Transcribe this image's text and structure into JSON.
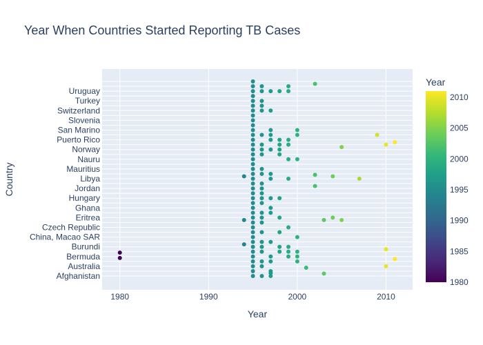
{
  "chart_data": {
    "type": "scatter",
    "title": "Year When Countries Started Reporting TB Cases",
    "xlabel": "Year",
    "ylabel": "Country",
    "xlim": [
      1978,
      2013
    ],
    "xticks": [
      1980,
      1990,
      2000,
      2010
    ],
    "ytick_labels": [
      "Afghanistan",
      "Australia",
      "Bermuda",
      "Burundi",
      "China, Macao SAR",
      "Czech Republic",
      "Eritrea",
      "Ghana",
      "Hungary",
      "Jordan",
      "Libya",
      "Mauritius",
      "Nauru",
      "Norway",
      "Puerto Rico",
      "San Marino",
      "Slovenia",
      "Switzerland",
      "Turkey",
      "Uruguay"
    ],
    "colorbar": {
      "title": "Year",
      "range": [
        1980,
        2011
      ],
      "ticks": [
        1980,
        1985,
        1990,
        1995,
        2000,
        2005,
        2010
      ],
      "colorscale": [
        "#440154",
        "#482878",
        "#3e4989",
        "#31688e",
        "#26828e",
        "#1f9e89",
        "#35b779",
        "#6ece58",
        "#b5de2b",
        "#fde725"
      ]
    },
    "points": [
      {
        "x": 1995,
        "rows": [
          0,
          1,
          2,
          3,
          4,
          5,
          6,
          7,
          8,
          9,
          10,
          11,
          12,
          13,
          14,
          15,
          16,
          17,
          18,
          19,
          20,
          21,
          22,
          23,
          24,
          25,
          26,
          27,
          28,
          29,
          30,
          31,
          32,
          33,
          34,
          35,
          36,
          37,
          38,
          39,
          40
        ]
      },
      {
        "x": 1996,
        "rows": [
          0,
          2,
          3,
          5,
          6,
          7,
          9,
          11,
          12,
          13,
          15,
          16,
          17,
          18,
          19,
          21,
          22,
          25,
          26,
          27,
          29,
          34,
          35,
          36,
          38,
          39
        ]
      },
      {
        "x": 1997,
        "rows": [
          0,
          0.6,
          1,
          3,
          4,
          7,
          13,
          14,
          16,
          20,
          21,
          26,
          28,
          29,
          30,
          34,
          38
        ]
      },
      {
        "x": 1998,
        "rows": [
          5,
          6,
          9,
          12,
          16,
          25,
          26,
          27,
          28,
          38
        ]
      },
      {
        "x": 1999,
        "rows": [
          4,
          5,
          6,
          10,
          20,
          24,
          27,
          28,
          38,
          39
        ]
      },
      {
        "x": 2000,
        "rows": [
          3,
          4,
          5,
          8,
          24,
          29,
          30
        ]
      },
      {
        "x": 1994,
        "rows": [
          6.5,
          11.5,
          20.5
        ]
      },
      {
        "x": 1980,
        "rows": [
          3.7,
          4.8
        ]
      },
      {
        "x": 2001,
        "rows": [
          1.7
        ]
      },
      {
        "x": 2002,
        "rows": [
          18.5,
          20.8,
          39.5
        ]
      },
      {
        "x": 2003,
        "rows": [
          0.5,
          11.5
        ]
      },
      {
        "x": 2004,
        "rows": [
          20.5,
          12.0
        ]
      },
      {
        "x": 2005,
        "rows": [
          11.5,
          26.5
        ]
      },
      {
        "x": 2007,
        "rows": [
          20
        ]
      },
      {
        "x": 2009,
        "rows": [
          29
        ]
      },
      {
        "x": 2010,
        "rows": [
          2,
          5.5,
          27
        ]
      },
      {
        "x": 2011,
        "rows": [
          3.5,
          27.5
        ]
      }
    ]
  }
}
